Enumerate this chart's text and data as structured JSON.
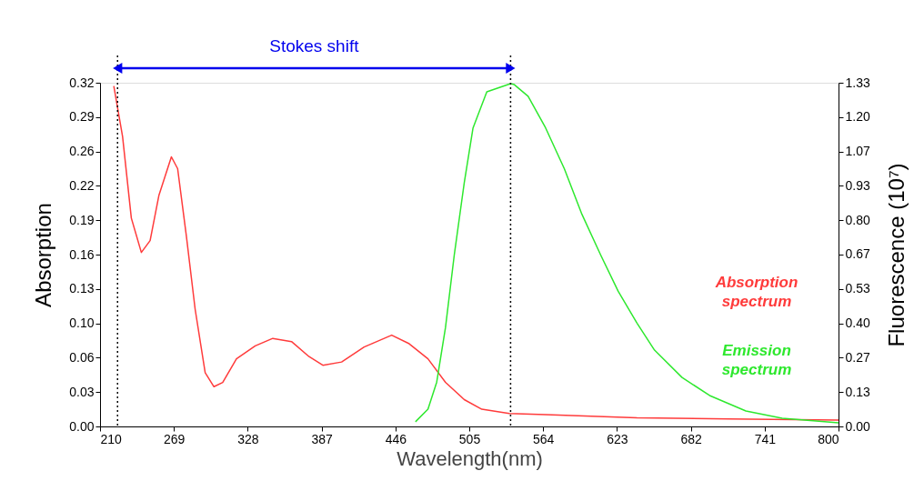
{
  "chart_data": {
    "type": "line",
    "xlabel": "Wavelength(nm)",
    "ylabel": "Absorption",
    "y2label": "Fluorescence (10⁷)",
    "xlim": [
      210,
      800
    ],
    "xticks": [
      210,
      269,
      328,
      387,
      446,
      505,
      564,
      623,
      682,
      741,
      800
    ],
    "ylim": [
      0,
      0.32
    ],
    "yticks": [
      {
        "value": 0,
        "label": "0.00"
      },
      {
        "value": 0.032,
        "label": "0.03"
      },
      {
        "value": 0.064,
        "label": "0.06"
      },
      {
        "value": 0.096,
        "label": "0.10"
      },
      {
        "value": 0.128,
        "label": "0.13"
      },
      {
        "value": 0.16,
        "label": "0.16"
      },
      {
        "value": 0.192,
        "label": "0.19"
      },
      {
        "value": 0.224,
        "label": "0.22"
      },
      {
        "value": 0.256,
        "label": "0.26"
      },
      {
        "value": 0.288,
        "label": "0.29"
      },
      {
        "value": 0.32,
        "label": "0.32"
      }
    ],
    "y2lim": [
      0,
      1.3333
    ],
    "y2ticks": [
      {
        "value": 0,
        "label": "0.00"
      },
      {
        "value": 0.1333,
        "label": "0.13"
      },
      {
        "value": 0.2667,
        "label": "0.27"
      },
      {
        "value": 0.4,
        "label": "0.40"
      },
      {
        "value": 0.5333,
        "label": "0.53"
      },
      {
        "value": 0.6667,
        "label": "0.67"
      },
      {
        "value": 0.8,
        "label": "0.80"
      },
      {
        "value": 0.9333,
        "label": "0.93"
      },
      {
        "value": 1.0667,
        "label": "1.07"
      },
      {
        "value": 1.2,
        "label": "1.20"
      },
      {
        "value": 1.3333,
        "label": "1.33"
      }
    ],
    "series": [
      {
        "name": "Absorption spectrum",
        "color": "#ff3b3b",
        "x": [
          221,
          228,
          235,
          243,
          250,
          257,
          267,
          272,
          279,
          286,
          294,
          301,
          308,
          319,
          334,
          348,
          363,
          377,
          388,
          403,
          421,
          443,
          457,
          472,
          486,
          501,
          515,
          537,
          566,
          639,
          712,
          800
        ],
        "values": [
          0.317,
          0.27,
          0.194,
          0.162,
          0.173,
          0.215,
          0.251,
          0.24,
          0.177,
          0.109,
          0.05,
          0.037,
          0.041,
          0.063,
          0.075,
          0.082,
          0.079,
          0.065,
          0.057,
          0.06,
          0.074,
          0.085,
          0.077,
          0.063,
          0.041,
          0.025,
          0.016,
          0.012,
          0.011,
          0.008,
          0.007,
          0.006
        ]
      },
      {
        "name": "Emission spectrum",
        "color": "#2ee82e",
        "axis": "y2",
        "x": [
          462,
          472,
          479,
          486,
          493,
          501,
          508,
          519,
          538,
          541,
          552,
          566,
          581,
          595,
          610,
          624,
          639,
          653,
          675,
          697,
          726,
          755,
          800
        ],
        "values": [
          0.018,
          0.067,
          0.172,
          0.384,
          0.665,
          0.946,
          1.158,
          1.298,
          1.33,
          1.326,
          1.281,
          1.158,
          0.999,
          0.823,
          0.665,
          0.524,
          0.401,
          0.296,
          0.19,
          0.12,
          0.06,
          0.032,
          0.014
        ]
      }
    ],
    "ref_lines": [
      {
        "axis": "x",
        "value": 224,
        "line_style": "dotted",
        "color": "#000000"
      },
      {
        "axis": "x",
        "value": 538,
        "line_style": "dotted",
        "color": "#000000"
      }
    ],
    "annotations": [
      "Stokes shift"
    ],
    "legend": "right",
    "grid": false,
    "marker": "none",
    "line_style": "solid"
  }
}
